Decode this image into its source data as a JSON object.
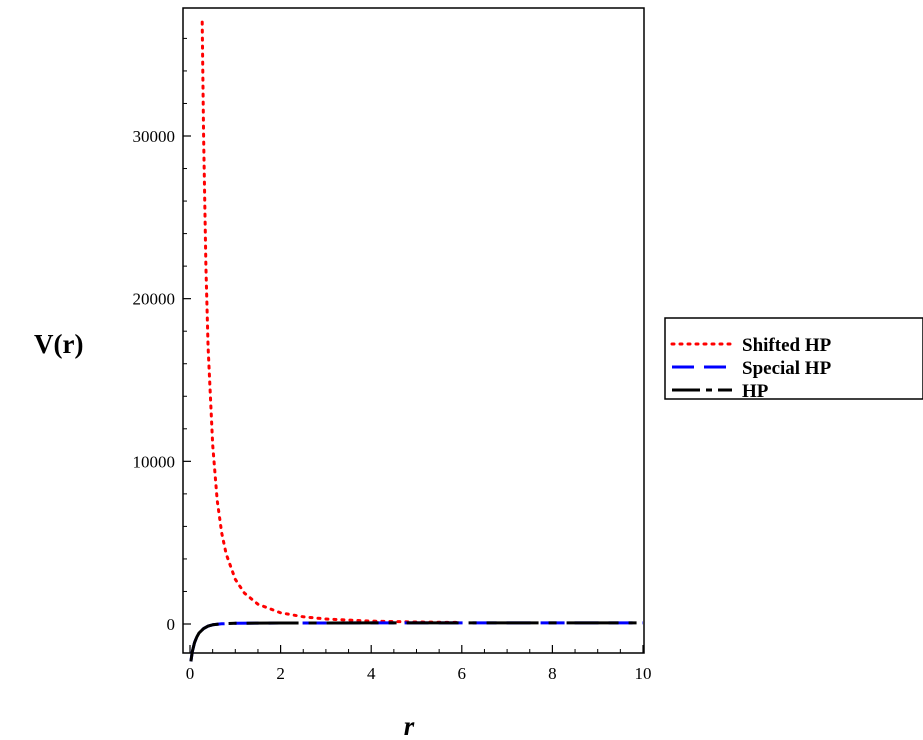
{
  "chart_data": {
    "type": "line",
    "xlabel": "r",
    "ylabel": "V(r)",
    "xlim": [
      0,
      10
    ],
    "ylim": [
      -3000,
      38000
    ],
    "x_ticks": [
      0,
      2,
      4,
      6,
      8,
      10
    ],
    "y_ticks": [
      0,
      10000,
      20000,
      30000
    ],
    "y_tick_labels": [
      "0",
      "10000",
      "20000",
      "30000"
    ],
    "grid": false,
    "legend_position": "right",
    "series": [
      {
        "name": "Shifted HP",
        "color": "#ff0000",
        "style": "dotted",
        "x": [
          0.27,
          0.3,
          0.35,
          0.4,
          0.5,
          0.6,
          0.7,
          0.8,
          1.0,
          1.2,
          1.5,
          2.0,
          2.5,
          3.0,
          4.0,
          5.0,
          6.0
        ],
        "y": [
          37000,
          30000,
          22000,
          17000,
          11000,
          7600,
          5600,
          4300,
          2750,
          1900,
          1220,
          690,
          440,
          310,
          180,
          120,
          90
        ]
      },
      {
        "name": "Special HP",
        "color": "#0000ff",
        "style": "dashed",
        "x": [
          0.02,
          0.05,
          0.1,
          0.15,
          0.2,
          0.3,
          0.4,
          0.5,
          0.7,
          1.0,
          2.0,
          4.0,
          6.0,
          8.0,
          10.0
        ],
        "y": [
          -2300,
          -1700,
          -1150,
          -800,
          -550,
          -280,
          -130,
          -50,
          10,
          40,
          60,
          70,
          70,
          70,
          70
        ]
      },
      {
        "name": "HP",
        "color": "#000000",
        "style": "dashdot",
        "x": [
          0.02,
          0.05,
          0.1,
          0.15,
          0.2,
          0.3,
          0.4,
          0.5,
          0.7,
          1.0,
          2.0,
          4.0,
          6.0,
          8.0,
          10.0
        ],
        "y": [
          -2300,
          -1700,
          -1150,
          -800,
          -550,
          -280,
          -130,
          -50,
          10,
          40,
          60,
          70,
          70,
          70,
          70
        ]
      }
    ]
  }
}
